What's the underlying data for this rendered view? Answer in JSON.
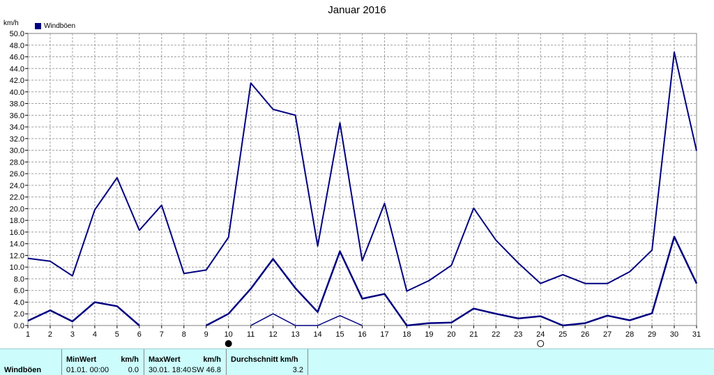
{
  "chart_data": {
    "type": "line",
    "title": "Januar 2016",
    "ylabel": "km/h",
    "legend": "Windböen",
    "legend_color": "#000080",
    "line_color": "#000080",
    "grid": true,
    "ylim": [
      0,
      50
    ],
    "yticks": [
      "0.0",
      "2.0",
      "4.0",
      "6.0",
      "8.0",
      "10.0",
      "12.0",
      "14.0",
      "16.0",
      "18.0",
      "20.0",
      "22.0",
      "24.0",
      "26.0",
      "28.0",
      "30.0",
      "32.0",
      "34.0",
      "36.0",
      "38.0",
      "40.0",
      "42.0",
      "44.0",
      "46.0",
      "48.0",
      "50.0"
    ],
    "x": [
      1,
      2,
      3,
      4,
      5,
      6,
      7,
      8,
      9,
      10,
      11,
      12,
      13,
      14,
      15,
      16,
      17,
      18,
      19,
      20,
      21,
      22,
      23,
      24,
      25,
      26,
      27,
      28,
      29,
      30,
      31
    ],
    "series": [
      {
        "role": "maximum",
        "values": [
          11.5,
          11.0,
          8.5,
          19.8,
          25.3,
          16.3,
          20.6,
          8.9,
          9.5,
          15.1,
          41.5,
          37.0,
          36.0,
          13.6,
          34.7,
          11.1,
          20.9,
          5.9,
          7.7,
          10.3,
          20.1,
          14.6,
          10.7,
          7.2,
          8.7,
          7.2,
          7.2,
          9.2,
          12.9,
          46.8,
          29.9
        ]
      },
      {
        "role": "average",
        "values": [
          0.8,
          2.6,
          0.7,
          4.0,
          3.3,
          0.0,
          null,
          null,
          0.0,
          2.0,
          6.3,
          11.4,
          6.4,
          2.3,
          12.7,
          4.6,
          5.4,
          0.0,
          0.4,
          0.5,
          2.9,
          2.0,
          1.2,
          1.6,
          0.0,
          0.4,
          1.7,
          0.9,
          2.1,
          15.2,
          7.2
        ]
      },
      {
        "role": "minimum",
        "values": [
          null,
          null,
          null,
          null,
          null,
          null,
          null,
          null,
          null,
          null,
          0.0,
          2.0,
          0.0,
          0.0,
          1.7,
          0.0,
          null,
          null,
          null,
          null,
          null,
          null,
          null,
          null,
          null,
          null,
          null,
          null,
          null,
          null,
          null
        ]
      }
    ],
    "moon_markers": [
      {
        "day": 10,
        "phase": "new-moon"
      },
      {
        "day": 24,
        "phase": "full-moon"
      }
    ]
  },
  "stats": {
    "row_label": "Windböen",
    "min_header": "MinWert",
    "min_unit": "km/h",
    "min_date": "01.01.  00:00",
    "min_value": "0.0",
    "max_header": "MaxWert",
    "max_unit": "km/h",
    "max_date": "30.01.  18:40",
    "max_dir_value": "SW 46.8",
    "avg_header": "Durchschnitt km/h",
    "avg_value": "3.2"
  }
}
